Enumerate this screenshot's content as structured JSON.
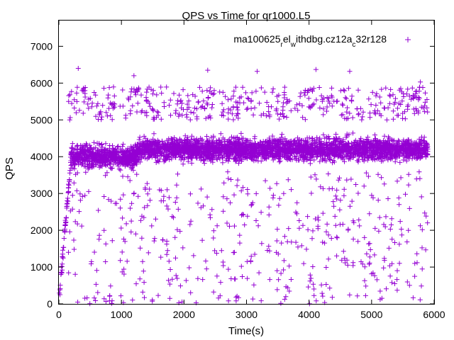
{
  "chart_data": {
    "type": "scatter",
    "title": "QPS vs Time for qr1000.L5",
    "xlabel": "Time(s)",
    "ylabel": "QPS",
    "xlim": [
      0,
      6000
    ],
    "ylim": [
      0,
      7700
    ],
    "xticks": [
      0,
      1000,
      2000,
      3000,
      4000,
      5000,
      6000
    ],
    "yticks": [
      0,
      1000,
      2000,
      3000,
      4000,
      5000,
      6000,
      7000
    ],
    "grid": false,
    "legend_position": "top-right",
    "marker": "plus",
    "series": [
      {
        "name_parts": [
          {
            "text": "ma100625",
            "shift": "none"
          },
          {
            "text": "r",
            "shift": "sub"
          },
          {
            "text": "el",
            "shift": "none"
          },
          {
            "text": "w",
            "shift": "sub"
          },
          {
            "text": "ithdbg.cz12a",
            "shift": "none"
          },
          {
            "text": "c",
            "shift": "sub"
          },
          {
            "text": "32r128",
            "shift": "none"
          }
        ],
        "color": "#9400d3",
        "x_range": [
          0,
          5900
        ],
        "ramp": {
          "x_range": [
            0,
            190
          ],
          "y_range": [
            0,
            3900
          ]
        },
        "dense_band": [
          {
            "x_range": [
              190,
              1250
            ],
            "y_range": [
              3500,
              4500
            ],
            "center": 4000
          },
          {
            "x_range": [
              1250,
              5900
            ],
            "y_range": [
              3700,
              4700
            ],
            "center": 4200
          }
        ],
        "typical_spread": [
          200,
          5500
        ],
        "outliers": [
          {
            "x": 310,
            "y": 6400
          },
          {
            "x": 1200,
            "y": 6200
          },
          {
            "x": 2380,
            "y": 6350
          },
          {
            "x": 3170,
            "y": 6320
          },
          {
            "x": 4110,
            "y": 6370
          },
          {
            "x": 4650,
            "y": 6320
          },
          {
            "x": 5780,
            "y": 6030
          }
        ]
      }
    ]
  }
}
